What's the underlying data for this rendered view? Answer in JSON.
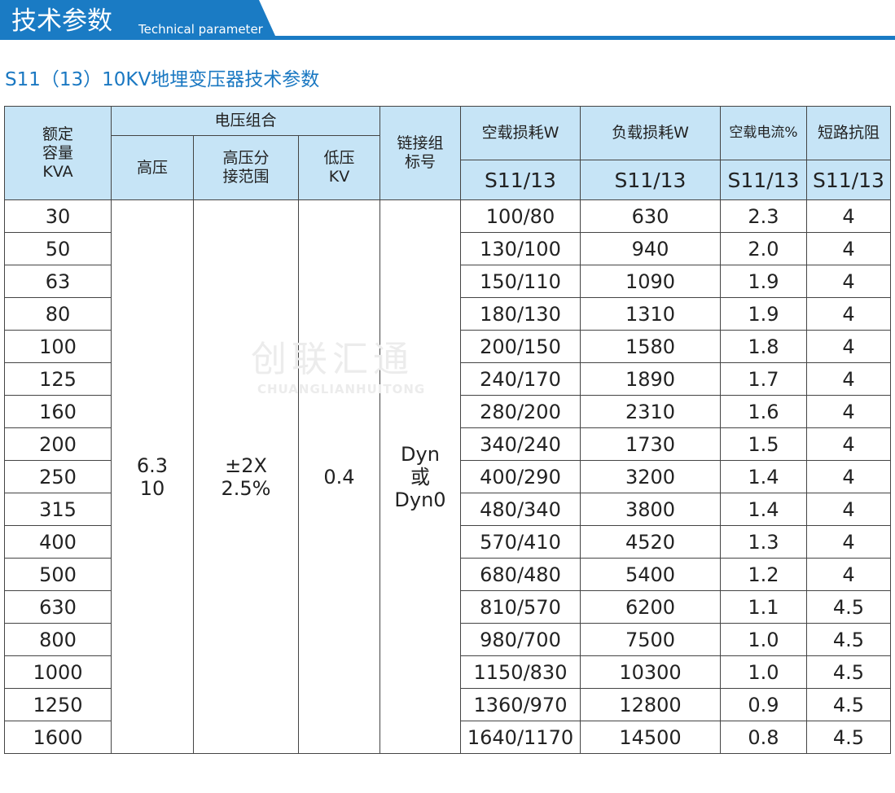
{
  "header": {
    "title": "技术参数",
    "subtitle": "Technical parameter"
  },
  "table_title": "S11（13）10KV地埋变压器技术参数",
  "watermark": {
    "name": "创联汇通",
    "pinyin": "CHUANGLIANHUITONG"
  },
  "table": {
    "headers": {
      "capacity": [
        "额定",
        "容量",
        "KVA"
      ],
      "voltage_group": "电压组合",
      "hv": "高压",
      "tap": [
        "高压分",
        "接范围"
      ],
      "lv": [
        "低压",
        "KV"
      ],
      "vector": [
        "链接组",
        "标号"
      ],
      "no_load_loss": "空载损耗W",
      "load_loss": "负载损耗W",
      "no_load_current": "空载电流%",
      "impedance": "短路抗阻",
      "models": [
        "S11/13",
        "S11/13",
        "S11/13",
        "S11/13"
      ]
    },
    "merged": {
      "hv": [
        "6.3",
        "10"
      ],
      "tap": [
        "±2X",
        "2.5%"
      ],
      "lv": [
        "0.4"
      ],
      "vector": [
        "Dyn",
        "或",
        "Dyn0"
      ]
    },
    "rows": [
      [
        "30",
        "100/80",
        "630",
        "2.3",
        "4"
      ],
      [
        "50",
        "130/100",
        "940",
        "2.0",
        "4"
      ],
      [
        "63",
        "150/110",
        "1090",
        "1.9",
        "4"
      ],
      [
        "80",
        "180/130",
        "1310",
        "1.9",
        "4"
      ],
      [
        "100",
        "200/150",
        "1580",
        "1.8",
        "4"
      ],
      [
        "125",
        "240/170",
        "1890",
        "1.7",
        "4"
      ],
      [
        "160",
        "280/200",
        "2310",
        "1.6",
        "4"
      ],
      [
        "200",
        "340/240",
        "1730",
        "1.5",
        "4"
      ],
      [
        "250",
        "400/290",
        "3200",
        "1.4",
        "4"
      ],
      [
        "315",
        "480/340",
        "3800",
        "1.4",
        "4"
      ],
      [
        "400",
        "570/410",
        "4520",
        "1.3",
        "4"
      ],
      [
        "500",
        "680/480",
        "5400",
        "1.2",
        "4"
      ],
      [
        "630",
        "810/570",
        "6200",
        "1.1",
        "4.5"
      ],
      [
        "800",
        "980/700",
        "7500",
        "1.0",
        "4.5"
      ],
      [
        "1000",
        "1150/830",
        "10300",
        "1.0",
        "4.5"
      ],
      [
        "1250",
        "1360/970",
        "12800",
        "0.9",
        "4.5"
      ],
      [
        "1600",
        "1640/1170",
        "14500",
        "0.8",
        "4.5"
      ]
    ]
  }
}
